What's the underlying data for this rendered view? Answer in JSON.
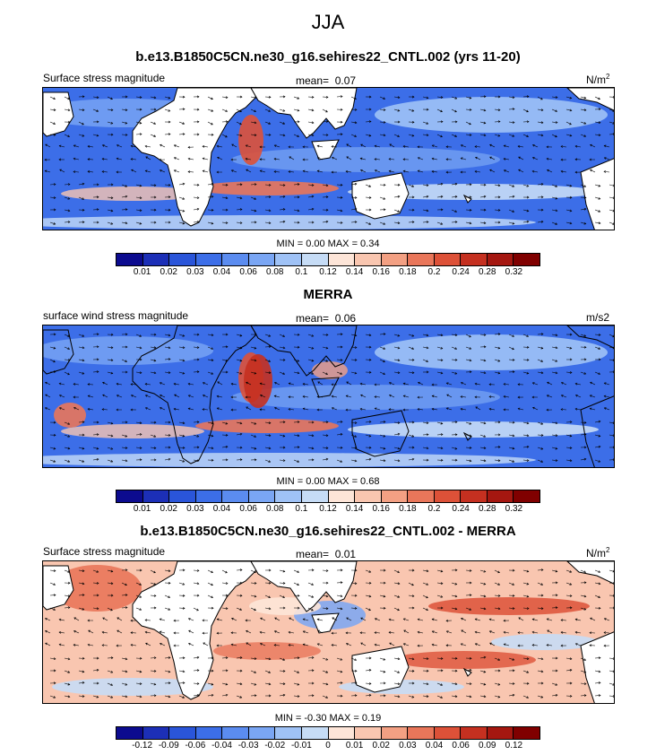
{
  "title": "JJA",
  "panels": [
    {
      "id": "model",
      "title": "b.e13.B1850C5CN.ne30_g16.sehires22_CNTL.002 (yrs 11-20)",
      "left_label": "Surface stress magnitude",
      "mean_label": "mean=",
      "mean_value": "0.07",
      "units": "N/m",
      "units_sup": "2",
      "stats": "MIN =   0.00 MAX =   0.34",
      "colorbar_ticks": [
        "0.01",
        "0.02",
        "0.03",
        "0.04",
        "0.06",
        "0.08",
        "0.1",
        "0.12",
        "0.14",
        "0.16",
        "0.18",
        "0.2",
        "0.24",
        "0.28",
        "0.32"
      ],
      "colorbar_colors": [
        "#0c0b8f",
        "#1c2fb7",
        "#2a55d9",
        "#3c6ee8",
        "#5b8cf0",
        "#7aa6f4",
        "#9fc2f6",
        "#c6dcf6",
        "#fde5d8",
        "#f9c6b0",
        "#f3a083",
        "#e9765a",
        "#dd5138",
        "#c53020",
        "#a51710",
        "#800000"
      ],
      "field": "stress"
    },
    {
      "id": "obs",
      "title": "MERRA",
      "left_label": "surface wind stress magnitude",
      "mean_label": "mean=",
      "mean_value": "0.06",
      "units": "m/s2",
      "units_sup": "",
      "stats": "MIN =   0.00 MAX =   0.68",
      "colorbar_ticks": [
        "0.01",
        "0.02",
        "0.03",
        "0.04",
        "0.06",
        "0.08",
        "0.1",
        "0.12",
        "0.14",
        "0.16",
        "0.18",
        "0.2",
        "0.24",
        "0.28",
        "0.32"
      ],
      "colorbar_colors": [
        "#0c0b8f",
        "#1c2fb7",
        "#2a55d9",
        "#3c6ee8",
        "#5b8cf0",
        "#7aa6f4",
        "#9fc2f6",
        "#c6dcf6",
        "#fde5d8",
        "#f9c6b0",
        "#f3a083",
        "#e9765a",
        "#dd5138",
        "#c53020",
        "#a51710",
        "#800000"
      ],
      "field": "stress"
    },
    {
      "id": "diff",
      "title": "b.e13.B1850C5CN.ne30_g16.sehires22_CNTL.002 - MERRA",
      "left_label": "Surface stress magnitude",
      "mean_label": "mean=",
      "mean_value": "0.01",
      "units": "N/m",
      "units_sup": "2",
      "stats": "MIN =  -0.30 MAX =   0.19",
      "colorbar_ticks": [
        "-0.12",
        "-0.09",
        "-0.06",
        "-0.04",
        "-0.03",
        "-0.02",
        "-0.01",
        "0",
        "0.01",
        "0.02",
        "0.03",
        "0.04",
        "0.06",
        "0.09",
        "0.12"
      ],
      "colorbar_colors": [
        "#0c0b8f",
        "#1c2fb7",
        "#2a55d9",
        "#3c6ee8",
        "#5b8cf0",
        "#7aa6f4",
        "#9fc2f6",
        "#c6dcf6",
        "#fde5d8",
        "#f9c6b0",
        "#f3a083",
        "#e9765a",
        "#dd5138",
        "#c53020",
        "#a51710",
        "#800000"
      ],
      "field": "diff"
    }
  ]
}
